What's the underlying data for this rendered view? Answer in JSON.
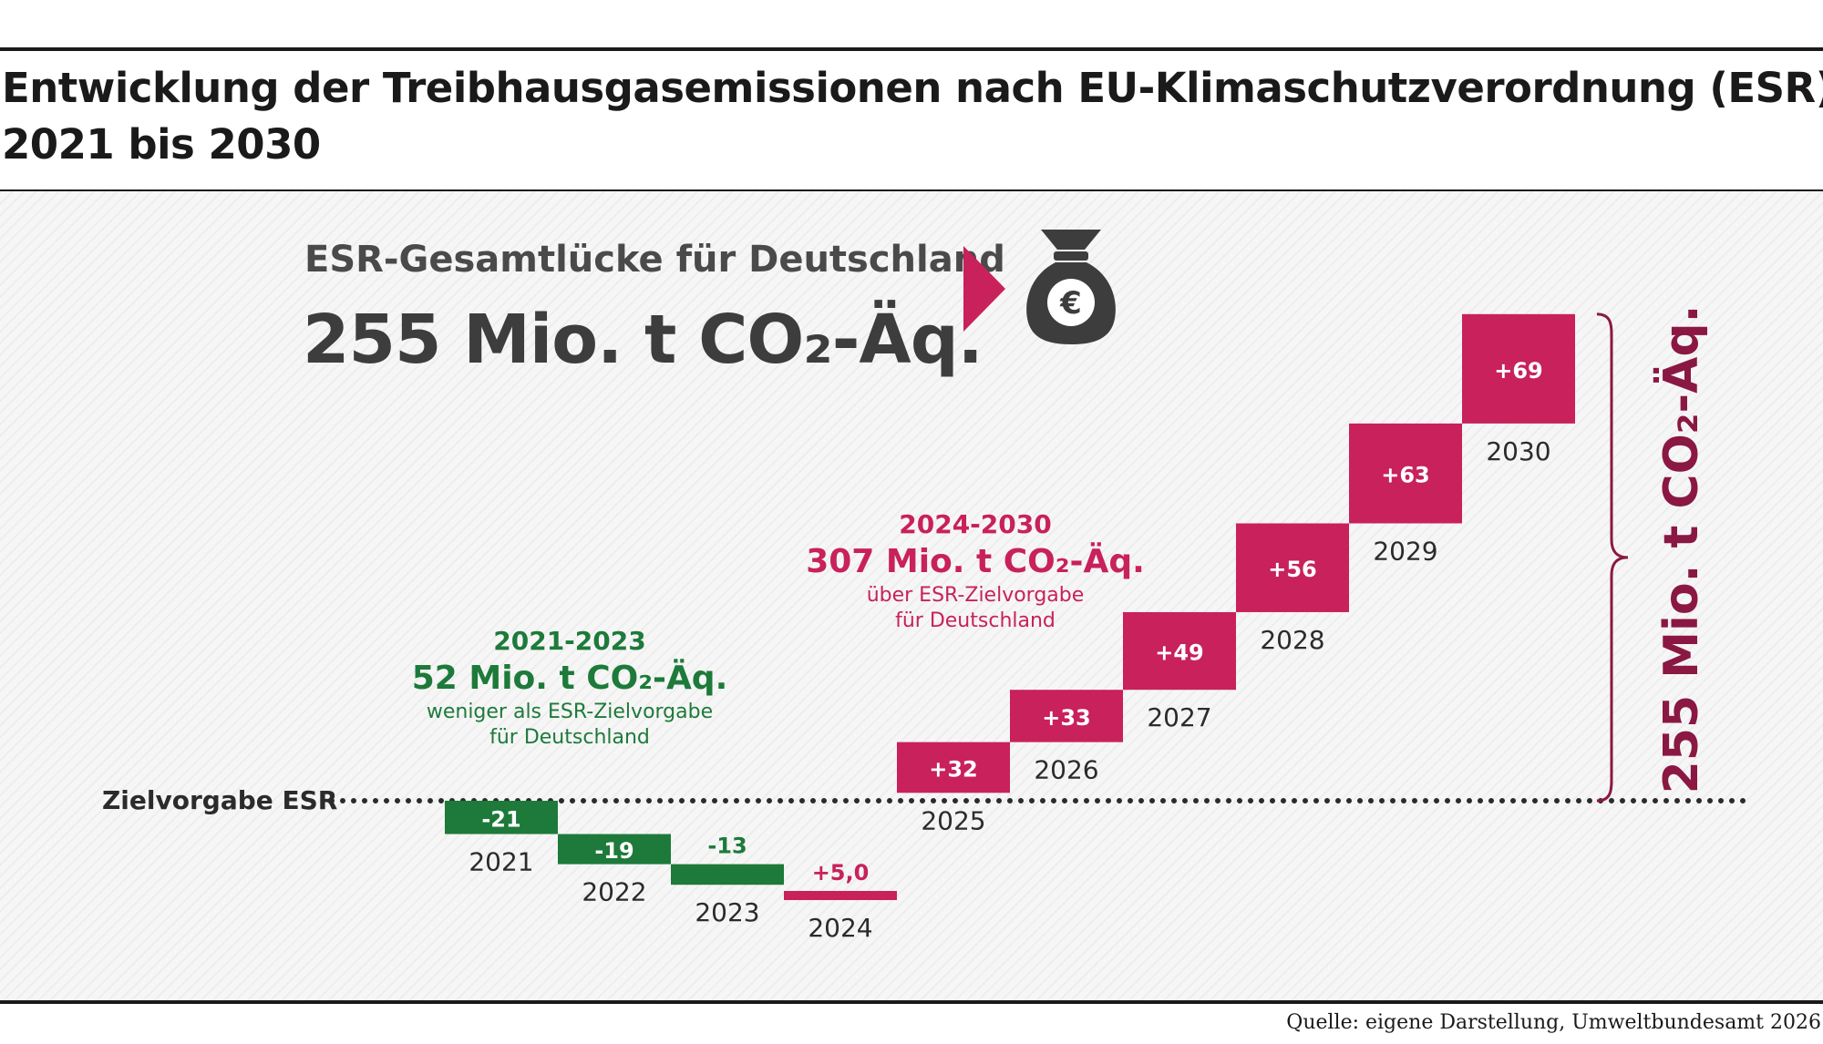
{
  "title_line1": "Entwicklung der Treibhausgasemissionen nach EU-Klimaschutzverordnung (ESR)",
  "title_line2": "2021 bis 2030",
  "headline": {
    "label": "ESR-Gesamtlücke für Deutschland",
    "value": "255 Mio. t CO₂-Äq."
  },
  "moneybag_icon": "euro-moneybag-icon",
  "group_below": {
    "period": "2021-2023",
    "total": "52 Mio. t CO₂-Äq.",
    "note_line1": "weniger als ESR-Zielvorgabe",
    "note_line2": "für Deutschland"
  },
  "group_above": {
    "period": "2024-2030",
    "total": "307 Mio. t CO₂-Äq.",
    "note_line1": "über ESR-Zielvorgabe",
    "note_line2": "für Deutschland"
  },
  "target_label": "Zielvorgabe ESR",
  "brace_label": "255 Mio. t CO₂-Äq.",
  "source": "Quelle: eigene Darstellung, Umweltbundesamt 2026",
  "colors": {
    "below_target": "#1d7a3a",
    "above_target": "#c8215b",
    "brace_text": "#8a1843",
    "headline_text": "#3d3d3d"
  },
  "chart_data": {
    "type": "bar",
    "baseline": "Zielvorgabe ESR",
    "categories": [
      "2021",
      "2022",
      "2023",
      "2024",
      "2025",
      "2026",
      "2027",
      "2028",
      "2029",
      "2030"
    ],
    "values": [
      -21,
      -19,
      -13,
      5.0,
      32,
      33,
      49,
      56,
      63,
      69
    ],
    "value_labels": [
      "-21",
      "-19",
      "-13",
      "+5,0",
      "+32",
      "+33",
      "+49",
      "+56",
      "+63",
      "+69"
    ],
    "unit": "Mio. t CO₂-Äq."
  }
}
